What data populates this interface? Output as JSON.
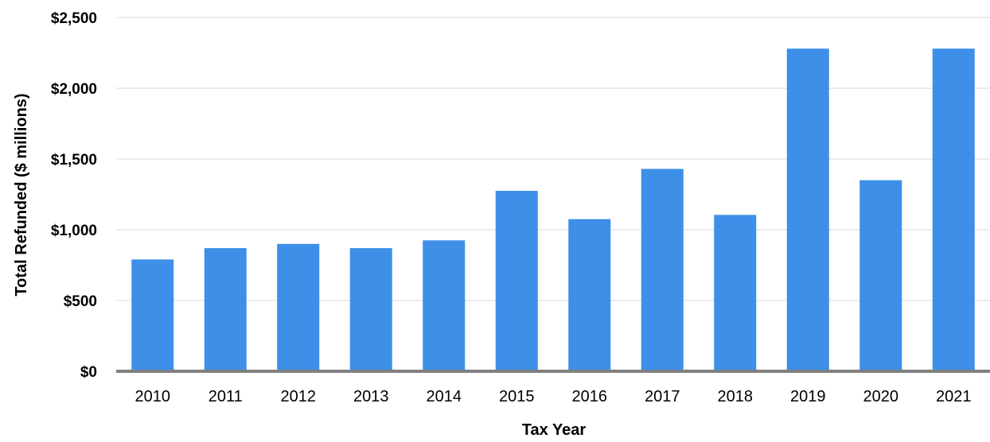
{
  "chart_data": {
    "type": "bar",
    "title": "",
    "xlabel": "Tax Year",
    "ylabel": "Total Refunded ($ millions)",
    "categories": [
      "2010",
      "2011",
      "2012",
      "2013",
      "2014",
      "2015",
      "2016",
      "2017",
      "2018",
      "2019",
      "2020",
      "2021"
    ],
    "values": [
      790,
      870,
      900,
      870,
      925,
      1275,
      1075,
      1430,
      1105,
      2280,
      1350,
      2280
    ],
    "ylim": [
      0,
      2500
    ],
    "yticks": [
      0,
      500,
      1000,
      1500,
      2000,
      2500
    ],
    "ytick_labels": [
      "$0",
      "$500",
      "$1,000",
      "$1,500",
      "$2,000",
      "$2,500"
    ],
    "grid": true,
    "legend": "none",
    "colors": {
      "bar": "#3d8fe8",
      "grid": "#d9d9d9",
      "baseline": "#808080"
    }
  }
}
